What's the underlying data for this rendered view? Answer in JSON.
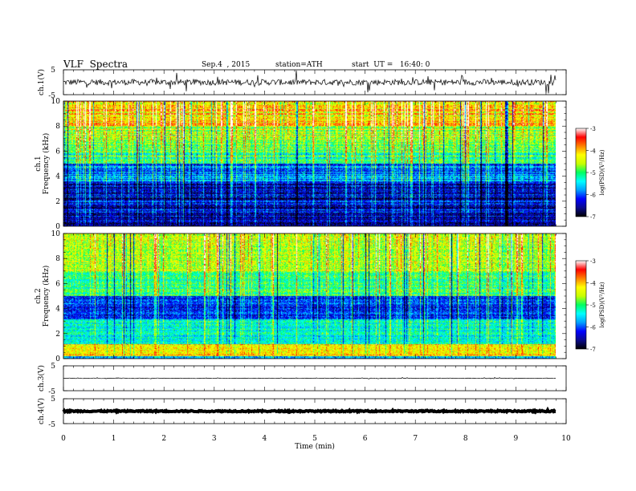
{
  "header": {
    "title": "VLF  Spectra",
    "date": "Sep.4  , 2015",
    "station": "station=ATH",
    "start": "start  UT =   16:40: 0"
  },
  "colors": {
    "colormap": [
      "#000000",
      "#0a0a8c",
      "#0000ff",
      "#00a0ff",
      "#00ffff",
      "#00ff60",
      "#c8ff00",
      "#ffff00",
      "#ff8000",
      "#ff0000",
      "#ffffff"
    ]
  },
  "chart_data": [
    {
      "type": "line",
      "name": "ch1-waveform",
      "ylabel": "ch.1(V)",
      "ylim": [
        -5,
        5
      ],
      "yticks": [
        "5",
        "-5"
      ],
      "baseline": 0,
      "noise_amplitude": 1.2,
      "spike_amplitude": 4
    },
    {
      "type": "heatmap",
      "name": "ch1-spectrogram",
      "ylabel": "ch.1\nFrequency  (kHz)",
      "ylim": [
        0,
        10
      ],
      "yticks": [
        "0",
        "2",
        "4",
        "6",
        "8",
        "10"
      ],
      "colorbar": {
        "label": "log(PSD)(V²/Hz)",
        "range": [
          -7,
          -3
        ],
        "ticks": [
          "-3",
          "-4",
          "-5",
          "-6",
          "-7"
        ]
      },
      "mean_log_psd": [
        {
          "freq_khz": [
            0,
            0.5
          ],
          "value": -6.8
        },
        {
          "freq_khz": [
            0.5,
            3.5
          ],
          "value": -6.4
        },
        {
          "freq_khz": [
            3.5,
            5.0
          ],
          "value": -5.9
        },
        {
          "freq_khz": [
            5.0,
            6.5
          ],
          "value": -5.1
        },
        {
          "freq_khz": [
            6.5,
            8.0
          ],
          "value": -4.6
        },
        {
          "freq_khz": [
            8.0,
            10
          ],
          "value": -4.1
        }
      ]
    },
    {
      "type": "heatmap",
      "name": "ch2-spectrogram",
      "ylabel": "ch.2\nFrequency  (kHz)",
      "ylim": [
        0,
        10
      ],
      "yticks": [
        "0",
        "2",
        "4",
        "6",
        "8",
        "10"
      ],
      "colorbar": {
        "label": "log(PSD)(V²/Hz)",
        "range": [
          -7,
          -3
        ],
        "ticks": [
          "-3",
          "-4",
          "-5",
          "-6",
          "-7"
        ]
      },
      "mean_log_psd": [
        {
          "freq_khz": [
            0,
            0.2
          ],
          "value": -5.8
        },
        {
          "freq_khz": [
            0.2,
            1.2
          ],
          "value": -4.2
        },
        {
          "freq_khz": [
            1.2,
            3.2
          ],
          "value": -5.3
        },
        {
          "freq_khz": [
            3.2,
            5.0
          ],
          "value": -6.1
        },
        {
          "freq_khz": [
            5.0,
            7.0
          ],
          "value": -5.0
        },
        {
          "freq_khz": [
            7.0,
            10
          ],
          "value": -4.5
        }
      ]
    },
    {
      "type": "line",
      "name": "ch3-waveform",
      "ylabel": "ch.3(V)",
      "ylim": [
        -5,
        5
      ],
      "yticks": [
        "5",
        "-5"
      ],
      "baseline": 0,
      "noise_amplitude": 0.1,
      "spike_amplitude": 0.3
    },
    {
      "type": "line",
      "name": "ch4-waveform",
      "ylabel": "ch.4(V)",
      "ylim": [
        -5,
        5
      ],
      "yticks": [
        "5",
        "-5"
      ],
      "baseline": 0,
      "noise_amplitude": 0.25,
      "spike_amplitude": 0.3
    }
  ],
  "xaxis": {
    "label": "Time  (min)",
    "range": [
      0,
      10
    ],
    "data_end": 9.8,
    "ticks": [
      "0",
      "1",
      "2",
      "3",
      "4",
      "5",
      "6",
      "7",
      "8",
      "9",
      "10"
    ]
  }
}
